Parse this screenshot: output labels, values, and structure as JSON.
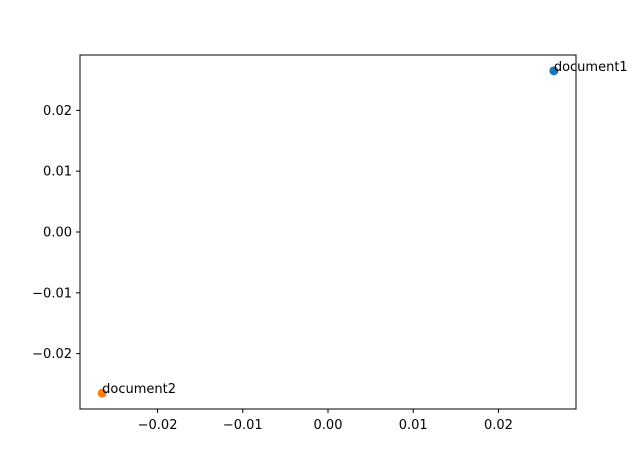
{
  "chart_data": {
    "type": "scatter",
    "title": "",
    "xlabel": "",
    "ylabel": "",
    "xlim": [
      -0.0291,
      0.0291
    ],
    "ylim": [
      -0.0291,
      0.0291
    ],
    "grid": false,
    "x_ticks": [
      {
        "value": -0.02,
        "label": "−0.02"
      },
      {
        "value": -0.01,
        "label": "−0.01"
      },
      {
        "value": 0.0,
        "label": "0.00"
      },
      {
        "value": 0.01,
        "label": "0.01"
      },
      {
        "value": 0.02,
        "label": "0.02"
      }
    ],
    "y_ticks": [
      {
        "value": -0.02,
        "label": "−0.02"
      },
      {
        "value": -0.01,
        "label": "−0.01"
      },
      {
        "value": 0.0,
        "label": "0.00"
      },
      {
        "value": 0.01,
        "label": "0.01"
      },
      {
        "value": 0.02,
        "label": "0.02"
      }
    ],
    "points": [
      {
        "label": "document1",
        "x": 0.0265,
        "y": 0.0265,
        "color": "#1f77b4"
      },
      {
        "label": "document2",
        "x": -0.0265,
        "y": -0.0265,
        "color": "#ff7f0e"
      }
    ]
  }
}
